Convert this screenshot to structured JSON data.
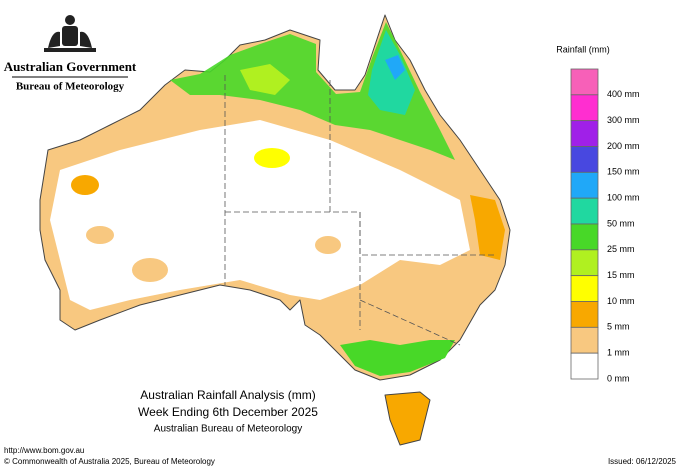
{
  "header": {
    "government": "Australian Government",
    "agency": "Bureau of Meteorology"
  },
  "legend": {
    "title": "Rainfall (mm)",
    "colors": [
      "#f760b8",
      "#ff2ed0",
      "#a020e8",
      "#4848e0",
      "#20a8f8",
      "#20d8a0",
      "#48d828",
      "#b0f020",
      "#ffff00",
      "#f8a800",
      "#f8c880",
      "#ffffff"
    ],
    "labels": [
      "400 mm",
      "300 mm",
      "200 mm",
      "150 mm",
      "100 mm",
      "50 mm",
      "25 mm",
      "15 mm",
      "10 mm",
      "5 mm",
      "1 mm",
      "0 mm"
    ]
  },
  "caption": {
    "title": "Australian Rainfall Analysis (mm)",
    "period": "Week Ending 6th December 2025",
    "source": "Australian Bureau of Meteorology"
  },
  "footer": {
    "url": "http://www.bom.gov.au",
    "copyright": "© Commonwealth of Australia 2025, Bureau of Meteorology",
    "issued": "Issued: 06/12/2025"
  }
}
